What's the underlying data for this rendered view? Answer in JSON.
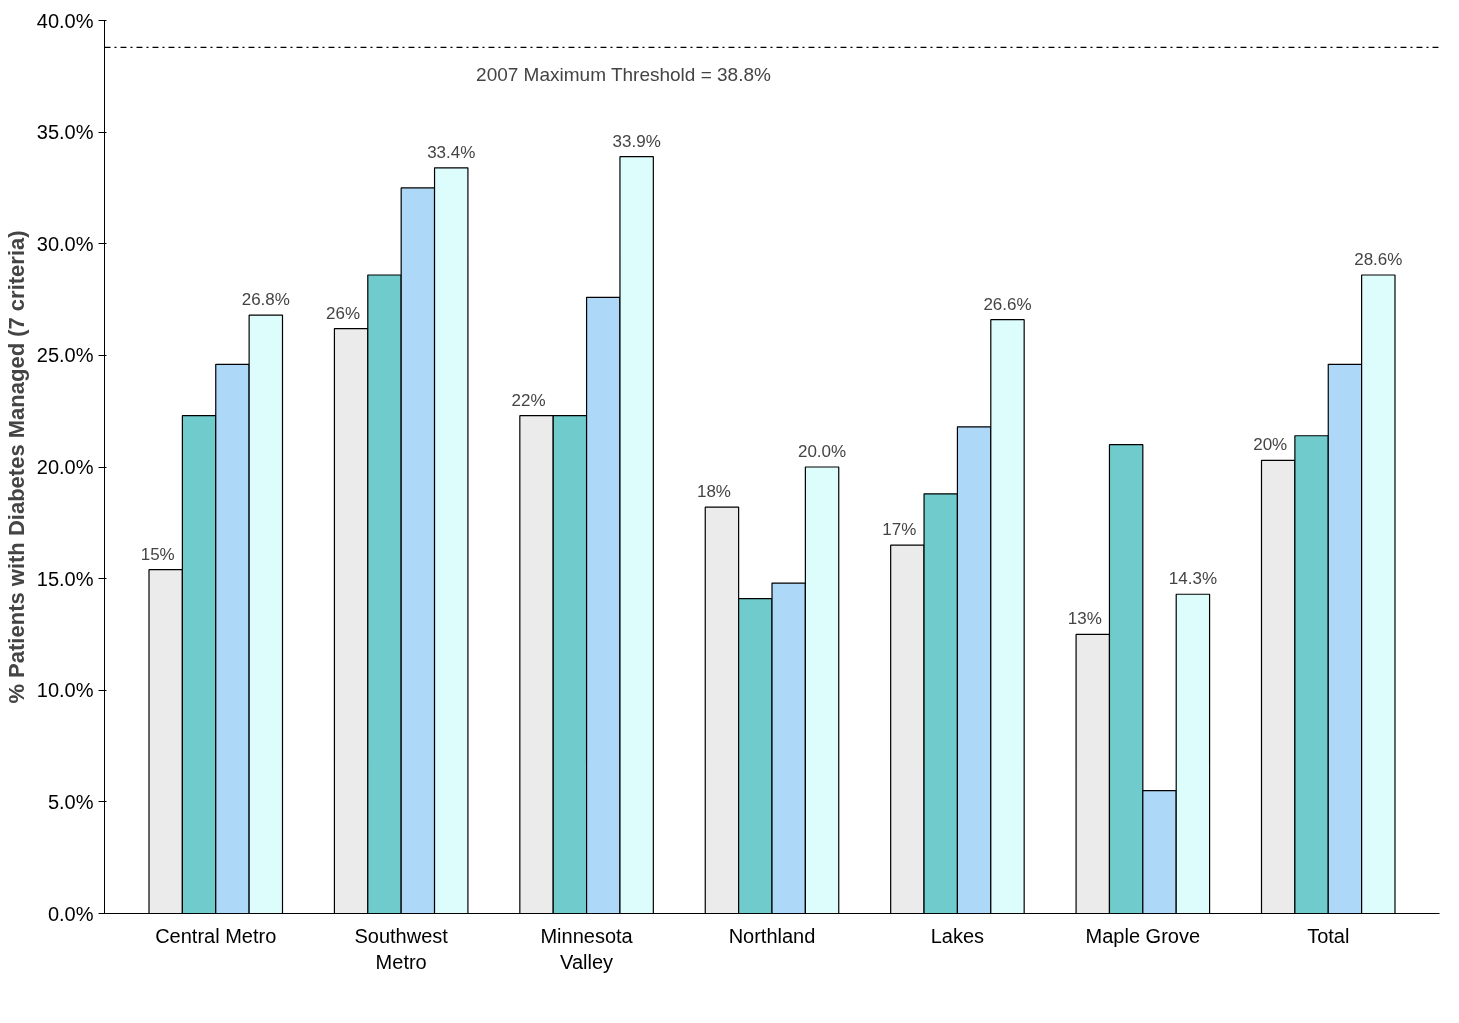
{
  "chart_data": {
    "type": "bar",
    "ylabel": "% Patients with Diabetes Managed (7 criteria)",
    "categories": [
      "Central Metro",
      "Southwest\nMetro",
      "Minnesota\nValley",
      "Northland",
      "Lakes",
      "Maple Grove",
      "Total"
    ],
    "series": [
      {
        "color": "#ebebeb",
        "values": [
          15.4,
          26.2,
          22.3,
          18.2,
          16.5,
          12.5,
          20.3
        ],
        "value_labels": [
          "15%",
          "26%",
          "22%",
          "18%",
          "17%",
          "13%",
          "20%"
        ]
      },
      {
        "color": "#70cccc",
        "values": [
          22.3,
          28.6,
          22.3,
          14.1,
          18.8,
          21.0,
          21.4
        ]
      },
      {
        "color": "#add8f7",
        "values": [
          24.6,
          32.5,
          27.6,
          14.8,
          21.8,
          5.5,
          24.6
        ]
      },
      {
        "color": "#ddfcfc",
        "values": [
          26.8,
          33.4,
          33.9,
          20.0,
          26.6,
          14.3,
          28.6
        ],
        "value_labels": [
          "26.8%",
          "33.4%",
          "33.9%",
          "20.0%",
          "26.6%",
          "14.3%",
          "28.6%"
        ]
      }
    ],
    "ylim": [
      0,
      40
    ],
    "yticks": [
      {
        "value": 0,
        "label": "0.0%"
      },
      {
        "value": 5,
        "label": "5.0%"
      },
      {
        "value": 10,
        "label": "10.0%"
      },
      {
        "value": 15,
        "label": "15.0%"
      },
      {
        "value": 20,
        "label": "20.0%"
      },
      {
        "value": 25,
        "label": "25.0%"
      },
      {
        "value": 30,
        "label": "30.0%"
      },
      {
        "value": 35,
        "label": "35.0%"
      },
      {
        "value": 40,
        "label": "40.0%"
      }
    ],
    "ref_lines": [
      {
        "axis": "y",
        "value": 38.8,
        "label": "2007 Maximum Threshold = 38.8%",
        "line_style": "dashdot"
      }
    ],
    "grid": false
  }
}
